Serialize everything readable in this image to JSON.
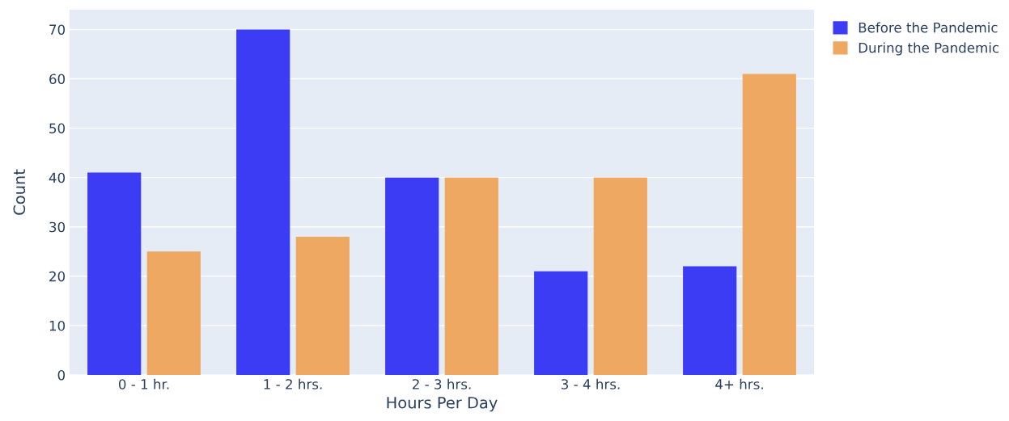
{
  "chart_data": {
    "type": "bar",
    "xlabel": "Hours Per Day",
    "ylabel": "Count",
    "categories": [
      "0 - 1 hr.",
      "1 - 2 hrs.",
      "2 - 3 hrs.",
      "3 - 4 hrs.",
      "4+ hrs."
    ],
    "series": [
      {
        "name": "Before the Pandemic",
        "color": "#3c3cf4",
        "values": [
          41,
          70,
          40,
          21,
          22
        ]
      },
      {
        "name": "During the Pandemic",
        "color": "#eea862",
        "values": [
          25,
          28,
          40,
          40,
          61
        ]
      }
    ],
    "ylim": [
      0,
      74
    ],
    "yticks": [
      0,
      10,
      20,
      30,
      40,
      50,
      60,
      70
    ],
    "grid": "y",
    "legend": "top right"
  }
}
